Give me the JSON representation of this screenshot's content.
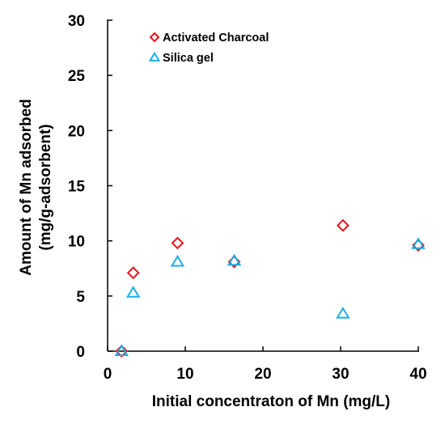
{
  "chart_data": {
    "type": "scatter",
    "xlabel": "Initial concentraton of Mn (mg/L)",
    "ylabel_lines": [
      "Amount of Mn adsorbed",
      "(mg/g-adsorbent)"
    ],
    "xlim": [
      0,
      40
    ],
    "ylim": [
      0,
      30
    ],
    "xticks": [
      0,
      10,
      20,
      30,
      40
    ],
    "yticks": [
      0,
      5,
      10,
      15,
      20,
      25,
      30
    ],
    "grid": false,
    "legend_position": "top-right",
    "series": [
      {
        "name": "Activated Charcoal",
        "marker": "diamond",
        "color": "#e8131b",
        "x": [
          1.8,
          3.3,
          9.0,
          16.3,
          30.3,
          40.0
        ],
        "y": [
          0.0,
          7.1,
          9.8,
          8.1,
          11.4,
          9.6
        ]
      },
      {
        "name": "Silica gel",
        "marker": "triangle",
        "color": "#1eaee6",
        "x": [
          1.8,
          3.3,
          9.0,
          16.3,
          30.3,
          40.0
        ],
        "y": [
          0.0,
          5.3,
          8.1,
          8.2,
          3.4,
          9.7
        ]
      }
    ]
  }
}
